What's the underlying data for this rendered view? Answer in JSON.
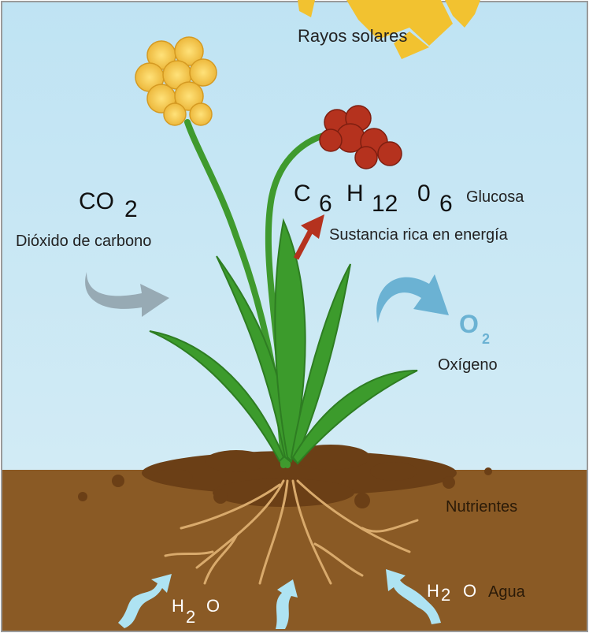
{
  "labels": {
    "sun": "Rayos solares",
    "co2": {
      "base": "CO",
      "sub": "2"
    },
    "co2_name": "Dióxido de carbono",
    "glucose": {
      "parts": [
        "C",
        "6",
        "H",
        "12",
        "0",
        "6"
      ]
    },
    "glucose_name": "Glucosa",
    "glucose_desc": "Sustancia rica en energía",
    "o2": {
      "base": "O",
      "sub": "2"
    },
    "o2_name": "Oxígeno",
    "nutrients": "Nutrientes",
    "water_left": {
      "base": "H",
      "sub": "2",
      "tail": "O"
    },
    "water_right": {
      "base": "H",
      "sub": "2",
      "tail": "O"
    },
    "water_name": "Agua"
  }
}
